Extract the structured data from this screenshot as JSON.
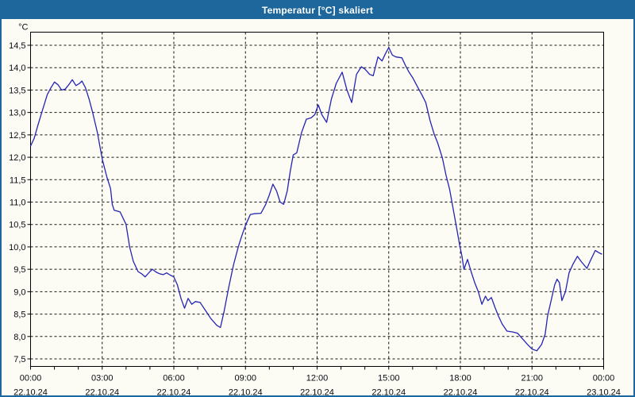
{
  "window": {
    "title": "Temperatur [°C] skaliert"
  },
  "colors": {
    "titlebar_bg": "#1d679c",
    "window_border": "#1d679c",
    "content_bg": "#fcfcf4",
    "line": "#2424b4",
    "grid": "#141414",
    "axis": "#000000",
    "text": "#0a0a14"
  },
  "chart_data": {
    "type": "line",
    "title": "Temperatur [°C] skaliert",
    "ylabel": "°C",
    "xlabel": "",
    "grid": "dashed",
    "legend": "none",
    "ylim": [
      7.5,
      14.5
    ],
    "xlim_hours": [
      0,
      24
    ],
    "y_ticks": [
      {
        "value": 14.5,
        "label": "14,5"
      },
      {
        "value": 14.0,
        "label": "14,0"
      },
      {
        "value": 13.5,
        "label": "13,5"
      },
      {
        "value": 13.0,
        "label": "13,0"
      },
      {
        "value": 12.5,
        "label": "12,5"
      },
      {
        "value": 12.0,
        "label": "12,0"
      },
      {
        "value": 11.5,
        "label": "11,5"
      },
      {
        "value": 11.0,
        "label": "11,0"
      },
      {
        "value": 10.5,
        "label": "10,5"
      },
      {
        "value": 10.0,
        "label": "10,0"
      },
      {
        "value": 9.5,
        "label": "9,5"
      },
      {
        "value": 9.0,
        "label": "9,0"
      },
      {
        "value": 8.5,
        "label": "8,5"
      },
      {
        "value": 8.0,
        "label": "8,0"
      },
      {
        "value": 7.5,
        "label": "7,5"
      }
    ],
    "x_ticks": [
      {
        "hour": 0,
        "time": "00:00",
        "date": "22.10.24"
      },
      {
        "hour": 3,
        "time": "03:00",
        "date": "22.10.24"
      },
      {
        "hour": 6,
        "time": "06:00",
        "date": "22.10.24"
      },
      {
        "hour": 9,
        "time": "09:00",
        "date": "22.10.24"
      },
      {
        "hour": 12,
        "time": "12:00",
        "date": "22.10.24"
      },
      {
        "hour": 15,
        "time": "15:00",
        "date": "22.10.24"
      },
      {
        "hour": 18,
        "time": "18:00",
        "date": "22.10.24"
      },
      {
        "hour": 21,
        "time": "21:00",
        "date": "22.10.24"
      },
      {
        "hour": 24,
        "time": "00:00",
        "date": "23.10.24"
      }
    ],
    "x_minor_tick_every_hours": 1,
    "series": [
      {
        "name": "Temperatur",
        "color": "#2424b4",
        "points": [
          [
            0.0,
            12.25
          ],
          [
            0.15,
            12.42
          ],
          [
            0.3,
            12.7
          ],
          [
            0.5,
            13.05
          ],
          [
            0.7,
            13.4
          ],
          [
            0.85,
            13.55
          ],
          [
            1.0,
            13.68
          ],
          [
            1.15,
            13.62
          ],
          [
            1.3,
            13.5
          ],
          [
            1.45,
            13.52
          ],
          [
            1.6,
            13.62
          ],
          [
            1.75,
            13.73
          ],
          [
            1.9,
            13.6
          ],
          [
            2.05,
            13.65
          ],
          [
            2.15,
            13.7
          ],
          [
            2.3,
            13.55
          ],
          [
            2.45,
            13.3
          ],
          [
            2.6,
            13.0
          ],
          [
            2.8,
            12.55
          ],
          [
            3.0,
            11.96
          ],
          [
            3.2,
            11.55
          ],
          [
            3.35,
            11.3
          ],
          [
            3.42,
            10.95
          ],
          [
            3.5,
            10.82
          ],
          [
            3.75,
            10.78
          ],
          [
            4.0,
            10.5
          ],
          [
            4.15,
            10.0
          ],
          [
            4.3,
            9.68
          ],
          [
            4.5,
            9.45
          ],
          [
            4.65,
            9.4
          ],
          [
            4.8,
            9.33
          ],
          [
            5.0,
            9.45
          ],
          [
            5.1,
            9.5
          ],
          [
            5.25,
            9.44
          ],
          [
            5.4,
            9.4
          ],
          [
            5.55,
            9.38
          ],
          [
            5.7,
            9.42
          ],
          [
            5.85,
            9.37
          ],
          [
            6.0,
            9.33
          ],
          [
            6.15,
            9.15
          ],
          [
            6.3,
            8.85
          ],
          [
            6.45,
            8.63
          ],
          [
            6.6,
            8.85
          ],
          [
            6.75,
            8.72
          ],
          [
            6.9,
            8.78
          ],
          [
            7.1,
            8.76
          ],
          [
            7.3,
            8.6
          ],
          [
            7.55,
            8.4
          ],
          [
            7.8,
            8.25
          ],
          [
            7.95,
            8.2
          ],
          [
            8.1,
            8.55
          ],
          [
            8.3,
            9.1
          ],
          [
            8.5,
            9.6
          ],
          [
            8.7,
            10.0
          ],
          [
            8.85,
            10.25
          ],
          [
            9.0,
            10.48
          ],
          [
            9.2,
            10.72
          ],
          [
            9.35,
            10.74
          ],
          [
            9.65,
            10.75
          ],
          [
            9.85,
            10.95
          ],
          [
            10.0,
            11.16
          ],
          [
            10.15,
            11.4
          ],
          [
            10.3,
            11.25
          ],
          [
            10.45,
            11.0
          ],
          [
            10.6,
            10.95
          ],
          [
            10.75,
            11.25
          ],
          [
            10.88,
            11.7
          ],
          [
            11.0,
            12.05
          ],
          [
            11.15,
            12.1
          ],
          [
            11.35,
            12.55
          ],
          [
            11.55,
            12.85
          ],
          [
            11.75,
            12.88
          ],
          [
            11.9,
            12.95
          ],
          [
            12.05,
            13.17
          ],
          [
            12.2,
            12.95
          ],
          [
            12.4,
            12.78
          ],
          [
            12.6,
            13.3
          ],
          [
            12.8,
            13.65
          ],
          [
            13.05,
            13.9
          ],
          [
            13.25,
            13.5
          ],
          [
            13.45,
            13.22
          ],
          [
            13.65,
            13.85
          ],
          [
            13.85,
            14.02
          ],
          [
            14.0,
            13.97
          ],
          [
            14.2,
            13.85
          ],
          [
            14.35,
            13.82
          ],
          [
            14.55,
            14.24
          ],
          [
            14.72,
            14.15
          ],
          [
            14.85,
            14.3
          ],
          [
            15.0,
            14.45
          ],
          [
            15.15,
            14.28
          ],
          [
            15.3,
            14.24
          ],
          [
            15.55,
            14.22
          ],
          [
            15.7,
            14.05
          ],
          [
            15.85,
            13.9
          ],
          [
            16.0,
            13.78
          ],
          [
            16.2,
            13.58
          ],
          [
            16.4,
            13.38
          ],
          [
            16.55,
            13.22
          ],
          [
            16.73,
            12.82
          ],
          [
            16.9,
            12.52
          ],
          [
            17.05,
            12.32
          ],
          [
            17.25,
            11.98
          ],
          [
            17.4,
            11.6
          ],
          [
            17.55,
            11.28
          ],
          [
            17.72,
            10.78
          ],
          [
            17.85,
            10.4
          ],
          [
            17.97,
            10.04
          ],
          [
            18.07,
            9.78
          ],
          [
            18.15,
            9.5
          ],
          [
            18.3,
            9.72
          ],
          [
            18.45,
            9.45
          ],
          [
            18.6,
            9.2
          ],
          [
            18.75,
            9.0
          ],
          [
            18.9,
            8.72
          ],
          [
            19.05,
            8.9
          ],
          [
            19.15,
            8.8
          ],
          [
            19.3,
            8.87
          ],
          [
            19.45,
            8.65
          ],
          [
            19.6,
            8.45
          ],
          [
            19.75,
            8.28
          ],
          [
            19.95,
            8.12
          ],
          [
            20.2,
            8.1
          ],
          [
            20.4,
            8.07
          ],
          [
            20.55,
            7.98
          ],
          [
            20.8,
            7.83
          ],
          [
            21.0,
            7.72
          ],
          [
            21.2,
            7.68
          ],
          [
            21.4,
            7.82
          ],
          [
            21.55,
            8.05
          ],
          [
            21.65,
            8.45
          ],
          [
            21.8,
            8.8
          ],
          [
            21.95,
            9.15
          ],
          [
            22.05,
            9.28
          ],
          [
            22.15,
            9.2
          ],
          [
            22.25,
            8.8
          ],
          [
            22.4,
            9.0
          ],
          [
            22.55,
            9.42
          ],
          [
            22.72,
            9.62
          ],
          [
            22.9,
            9.79
          ],
          [
            23.05,
            9.68
          ],
          [
            23.3,
            9.52
          ],
          [
            23.45,
            9.7
          ],
          [
            23.65,
            9.92
          ],
          [
            23.8,
            9.87
          ],
          [
            23.92,
            9.84
          ]
        ]
      }
    ]
  }
}
